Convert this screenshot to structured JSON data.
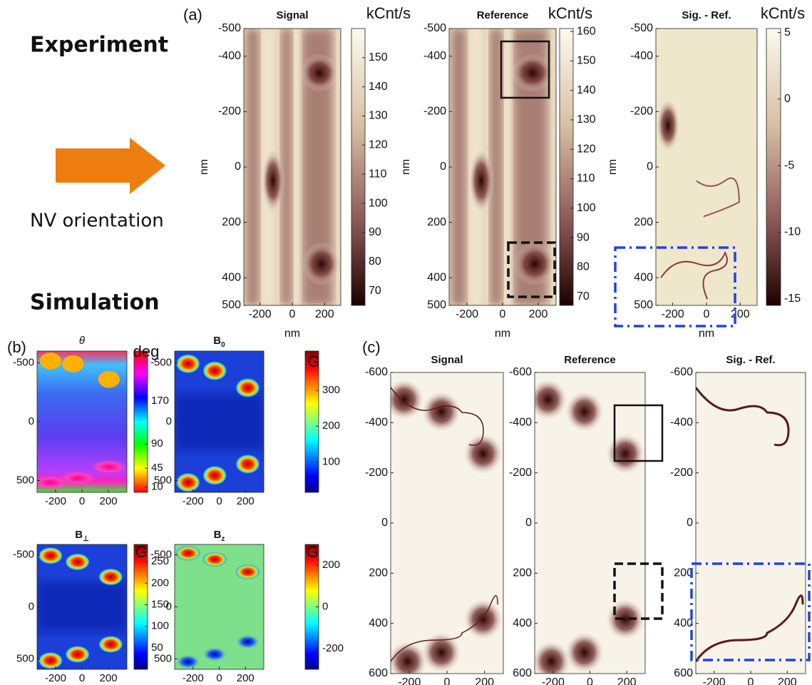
{
  "labels": {
    "panel_a": "(a)",
    "panel_b": "(b)",
    "panel_c": "(c)",
    "experiment": "Experiment",
    "nv_orientation": "NV orientation",
    "simulation": "Simulation"
  },
  "chart_data": [
    {
      "type": "heatmap",
      "title": "Signal",
      "xlabel": "nm",
      "ylabel": "nm",
      "xlim": [
        -300,
        300
      ],
      "ylim": [
        -500,
        500
      ],
      "y_reversed": true,
      "xticks": [
        -200,
        0,
        200
      ],
      "yticks": [
        -500,
        -400,
        -200,
        0,
        200,
        400,
        500
      ],
      "colorbar": {
        "label": "kCnt/s",
        "lim": [
          65,
          160
        ],
        "ticks": [
          70,
          80,
          90,
          100,
          110,
          120,
          130,
          140,
          150
        ]
      }
    },
    {
      "type": "heatmap",
      "title": "Reference",
      "xlabel": "nm",
      "ylabel": "nm",
      "xlim": [
        -300,
        300
      ],
      "ylim": [
        -500,
        500
      ],
      "y_reversed": true,
      "xticks": [
        -200,
        0,
        200
      ],
      "yticks": [
        -500,
        -400,
        -200,
        0,
        200,
        400,
        500
      ],
      "colorbar": {
        "label": "kCnt/s",
        "lim": [
          67,
          161
        ],
        "ticks": [
          70,
          80,
          90,
          100,
          110,
          120,
          130,
          140,
          150,
          160
        ]
      }
    },
    {
      "type": "heatmap",
      "title": "Sig. - Ref.",
      "xlabel": "nm",
      "ylabel": "nm",
      "xlim": [
        -300,
        300
      ],
      "ylim": [
        -500,
        500
      ],
      "y_reversed": true,
      "xticks": [
        -200,
        0,
        200
      ],
      "yticks": [
        -500,
        -400,
        -200,
        0,
        200,
        400,
        500
      ],
      "colorbar": {
        "label": "kCnt/s",
        "lim": [
          -15.5,
          5.3
        ],
        "ticks": [
          -15,
          -10,
          -5,
          0,
          5
        ]
      }
    },
    {
      "type": "heatmap",
      "title": "θ",
      "xlim": [
        -340,
        340
      ],
      "ylim": [
        -600,
        600
      ],
      "y_reversed": true,
      "xticks": [
        -200,
        0,
        200
      ],
      "yticks": [
        -500,
        0,
        500
      ],
      "colorbar": {
        "label": "deg",
        "lim": [
          0,
          263
        ],
        "ticks": [
          10,
          45,
          90,
          170
        ]
      }
    },
    {
      "type": "heatmap",
      "title": "B",
      "title_subscript": "0",
      "xlim": [
        -340,
        340
      ],
      "ylim": [
        -600,
        600
      ],
      "y_reversed": true,
      "xticks": [
        -200,
        0,
        200
      ],
      "yticks": [
        -500,
        0,
        500
      ],
      "colorbar": {
        "label": "G",
        "lim": [
          15,
          410
        ],
        "ticks": [
          100,
          200,
          300
        ]
      }
    },
    {
      "type": "heatmap",
      "title": "B",
      "title_subscript": "⊥",
      "xlim": [
        -340,
        340
      ],
      "ylim": [
        -600,
        600
      ],
      "y_reversed": true,
      "xticks": [
        -200,
        0,
        200
      ],
      "yticks": [
        -500,
        0,
        500
      ],
      "colorbar": {
        "label": "G",
        "lim": [
          0,
          290
        ],
        "ticks": [
          50,
          100,
          150,
          200,
          250
        ]
      }
    },
    {
      "type": "heatmap",
      "title": "B",
      "title_subscript": "z",
      "xlim": [
        -340,
        340
      ],
      "ylim": [
        -600,
        600
      ],
      "y_reversed": true,
      "xticks": [
        -200,
        0,
        200
      ],
      "yticks": [
        -500,
        0,
        500
      ],
      "colorbar": {
        "label": "G",
        "lim": [
          -300,
          300
        ],
        "ticks": [
          -200,
          0,
          200
        ]
      }
    },
    {
      "type": "heatmap",
      "title": "Signal",
      "xlim": [
        -300,
        300
      ],
      "ylim": [
        -600,
        600
      ],
      "y_reversed": true,
      "xticks": [
        -200,
        0,
        200
      ],
      "yticks": [
        -600,
        -400,
        -200,
        0,
        200,
        400,
        600
      ]
    },
    {
      "type": "heatmap",
      "title": "Reference",
      "xlim": [
        -300,
        300
      ],
      "ylim": [
        -600,
        600
      ],
      "y_reversed": true,
      "xticks": [
        -200,
        0,
        200
      ],
      "yticks": [
        -600,
        -400,
        -200,
        0,
        200,
        400,
        600
      ]
    },
    {
      "type": "heatmap",
      "title": "Sig. - Ref.",
      "xlim": [
        -300,
        300
      ],
      "ylim": [
        -600,
        600
      ],
      "y_reversed": true,
      "xticks": [
        -200,
        0,
        200
      ],
      "yticks": [
        -600,
        -400,
        -200,
        0,
        200,
        400,
        600
      ]
    }
  ]
}
